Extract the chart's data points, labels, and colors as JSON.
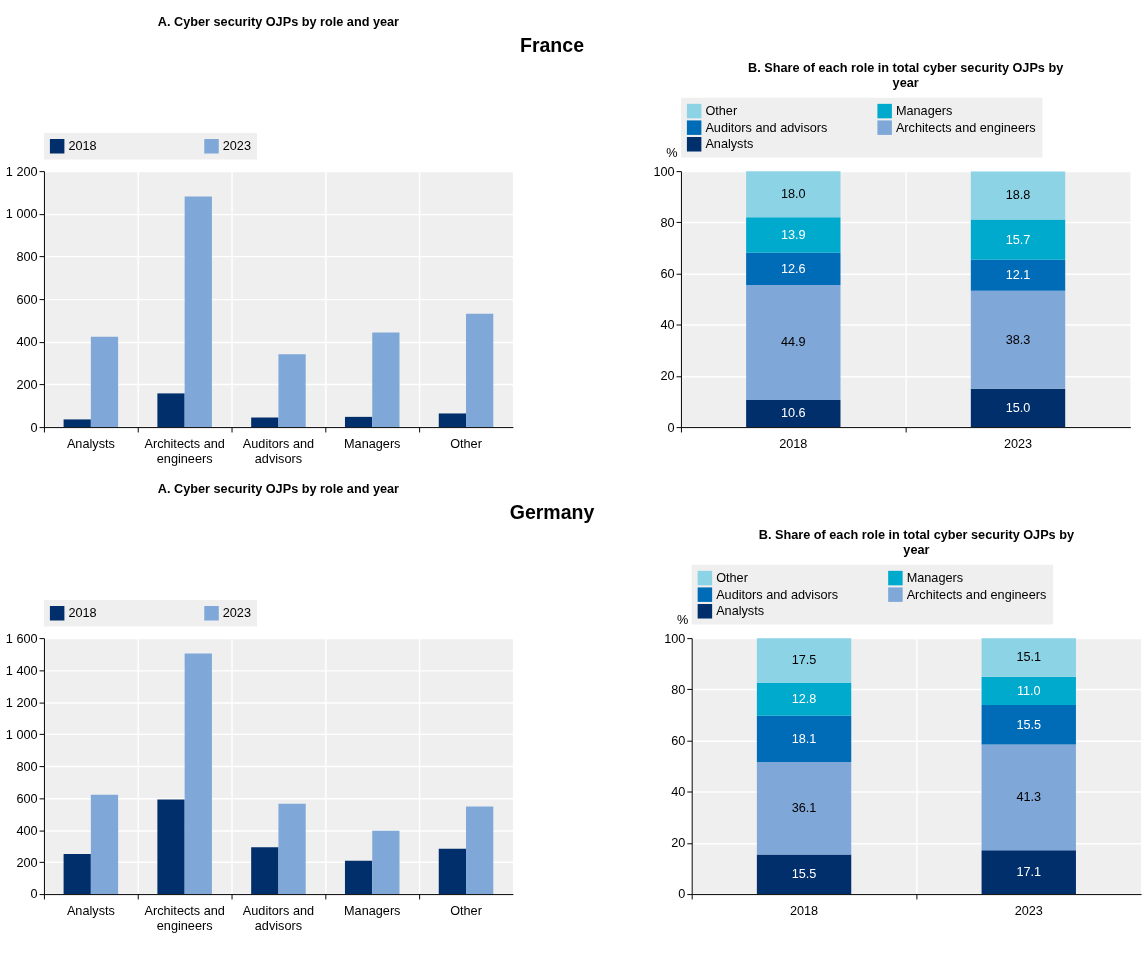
{
  "chart_data": [
    {
      "type": "bar",
      "title": "A. Cyber security OJPs by role and year",
      "annotations": [
        "France"
      ],
      "categories": [
        "Analysts",
        "Architects and engineers",
        "Auditors and advisors",
        "Managers",
        "Other"
      ],
      "series": [
        {
          "name": "2018",
          "color": "#002f6c",
          "values": [
            36,
            158,
            45,
            48,
            64
          ]
        },
        {
          "name": "2023",
          "color": "#7fa8d9",
          "values": [
            424,
            1081,
            342,
            444,
            531
          ]
        }
      ],
      "ylim": [
        0,
        1200
      ],
      "yticks": [
        0,
        200,
        400,
        600,
        800,
        {
          "value": 1000,
          "label": "1 000"
        },
        {
          "value": 1200,
          "label": "1 200"
        }
      ],
      "grid": true,
      "legend": "top"
    },
    {
      "type": "bar",
      "title": "B. Share of each role in total cyber security OJPs by year",
      "ylabel": "%",
      "categories": [
        "2018",
        "2023"
      ],
      "stacked": true,
      "series": [
        {
          "name": "Analysts",
          "color": "#002f6c",
          "values": [
            10.6,
            15.0
          ],
          "value_labels": [
            "10.6",
            "15.0"
          ]
        },
        {
          "name": "Architects and engineers",
          "color": "#7fa8d9",
          "values": [
            44.9,
            38.3
          ],
          "value_labels": [
            "44.9",
            "38.3"
          ]
        },
        {
          "name": "Auditors and advisors",
          "color": "#006bb6",
          "values": [
            12.6,
            12.1
          ],
          "value_labels": [
            "12.6",
            "12.1"
          ]
        },
        {
          "name": "Managers",
          "color": "#00aacc",
          "values": [
            13.9,
            15.7
          ],
          "value_labels": [
            "13.9",
            "15.7"
          ]
        },
        {
          "name": "Other",
          "color": "#8cd3e6",
          "values": [
            18.0,
            18.8
          ],
          "value_labels": [
            "18.0",
            "18.8"
          ]
        }
      ],
      "ylim": [
        0,
        100
      ],
      "yticks": [
        0,
        20,
        40,
        60,
        80,
        100
      ],
      "grid": true,
      "legend": "top"
    },
    {
      "type": "bar",
      "title": "A. Cyber security OJPs by role and year",
      "annotations": [
        "Germany"
      ],
      "categories": [
        "Analysts",
        "Architects and engineers",
        "Auditors and advisors",
        "Managers",
        "Other"
      ],
      "series": [
        {
          "name": "2018",
          "color": "#002f6c",
          "values": [
            251,
            592,
            293,
            209,
            284
          ]
        },
        {
          "name": "2023",
          "color": "#7fa8d9",
          "values": [
            621,
            1504,
            564,
            396,
            548
          ]
        }
      ],
      "ylim": [
        0,
        1600
      ],
      "yticks": [
        0,
        200,
        400,
        600,
        800,
        {
          "value": 1000,
          "label": "1 000"
        },
        {
          "value": 1200,
          "label": "1 200"
        },
        {
          "value": 1400,
          "label": "1 400"
        },
        {
          "value": 1600,
          "label": "1 600"
        }
      ],
      "grid": true,
      "legend": "top"
    },
    {
      "type": "bar",
      "title": "B. Share of each role in total cyber security OJPs by year",
      "ylabel": "%",
      "categories": [
        "2018",
        "2023"
      ],
      "stacked": true,
      "series": [
        {
          "name": "Analysts",
          "color": "#002f6c",
          "values": [
            15.5,
            17.1
          ],
          "value_labels": [
            "15.5",
            "17.1"
          ]
        },
        {
          "name": "Architects and engineers",
          "color": "#7fa8d9",
          "values": [
            36.1,
            41.3
          ],
          "value_labels": [
            "36.1",
            "41.3"
          ]
        },
        {
          "name": "Auditors and advisors",
          "color": "#006bb6",
          "values": [
            18.1,
            15.5
          ],
          "value_labels": [
            "18.1",
            "15.5"
          ]
        },
        {
          "name": "Managers",
          "color": "#00aacc",
          "values": [
            12.8,
            11.0
          ],
          "value_labels": [
            "12.8",
            "11.0"
          ]
        },
        {
          "name": "Other",
          "color": "#8cd3e6",
          "values": [
            17.5,
            15.1
          ],
          "value_labels": [
            "17.5",
            "15.1"
          ]
        }
      ],
      "ylim": [
        0,
        100
      ],
      "yticks": [
        0,
        20,
        40,
        60,
        80,
        100
      ],
      "grid": true,
      "legend": "top"
    }
  ]
}
